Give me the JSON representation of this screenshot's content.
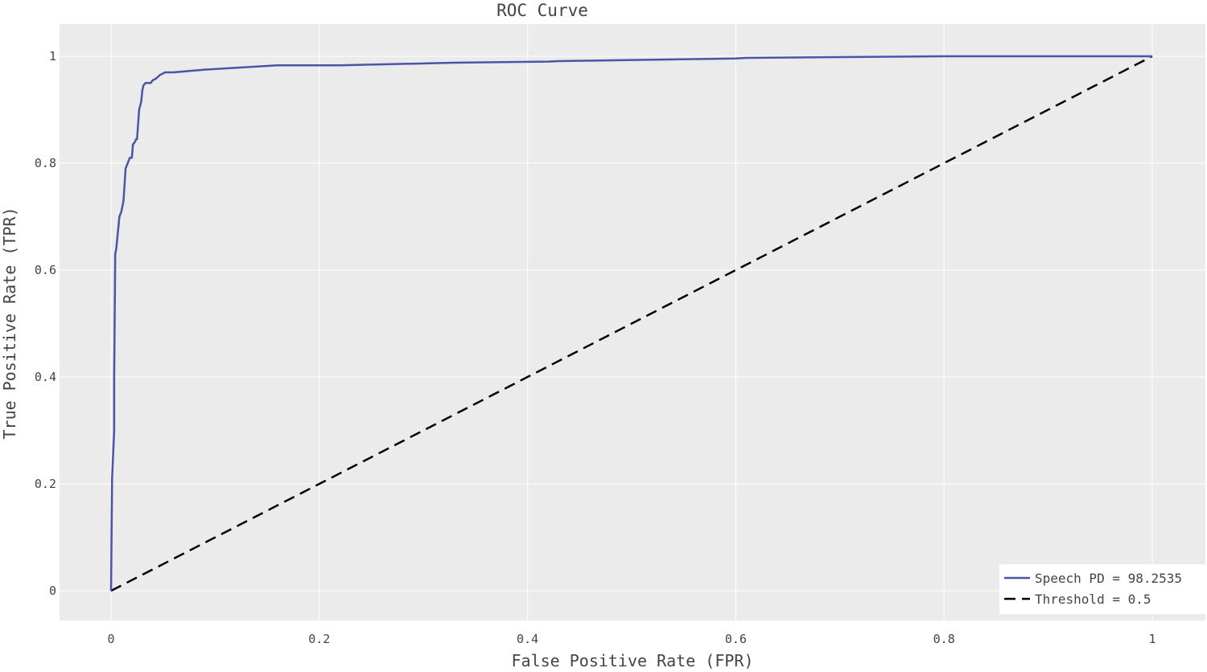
{
  "chart_data": {
    "type": "line",
    "title": "ROC Curve",
    "xlabel": "False Positive Rate (FPR)",
    "ylabel": "True Positive Rate (TPR)",
    "xlim": [
      0,
      1
    ],
    "ylim": [
      0,
      1
    ],
    "xticks": [
      0,
      0.2,
      0.4,
      0.6,
      0.8,
      1
    ],
    "xtick_labels": [
      "0",
      "0.2",
      "0.4",
      "0.6",
      "0.8",
      "1"
    ],
    "yticks": [
      0,
      0.2,
      0.4,
      0.6,
      0.8,
      1
    ],
    "ytick_labels": [
      "0",
      "0.2",
      "0.4",
      "0.6",
      "0.8",
      "1"
    ],
    "grid": true,
    "legend_position": "bottom-right",
    "background_color": "#ebebeb",
    "series": [
      {
        "name": "Speech PD = 98.2535",
        "color": "#4b55a6",
        "dash": "solid",
        "x": [
          0,
          0.001,
          0.001,
          0.003,
          0.003,
          0.004,
          0.005,
          0.006,
          0.008,
          0.01,
          0.012,
          0.014,
          0.016,
          0.018,
          0.02,
          0.021,
          0.023,
          0.024,
          0.025,
          0.027,
          0.029,
          0.03,
          0.031,
          0.033,
          0.035,
          0.038,
          0.04,
          0.043,
          0.047,
          0.052,
          0.06,
          0.09,
          0.16,
          0.22,
          0.33,
          0.42,
          0.43,
          0.6,
          0.61,
          0.8,
          1
        ],
        "y": [
          0,
          0.205,
          0.21,
          0.3,
          0.4,
          0.63,
          0.64,
          0.66,
          0.7,
          0.71,
          0.73,
          0.79,
          0.8,
          0.81,
          0.81,
          0.835,
          0.84,
          0.845,
          0.845,
          0.9,
          0.915,
          0.935,
          0.945,
          0.95,
          0.95,
          0.95,
          0.955,
          0.958,
          0.965,
          0.97,
          0.97,
          0.975,
          0.983,
          0.983,
          0.988,
          0.99,
          0.991,
          0.996,
          0.997,
          1.0,
          1.0
        ]
      },
      {
        "name": "Threshold = 0.5",
        "color": "#000000",
        "dash": "dashed",
        "x": [
          0,
          1
        ],
        "y": [
          0,
          1
        ]
      }
    ]
  }
}
